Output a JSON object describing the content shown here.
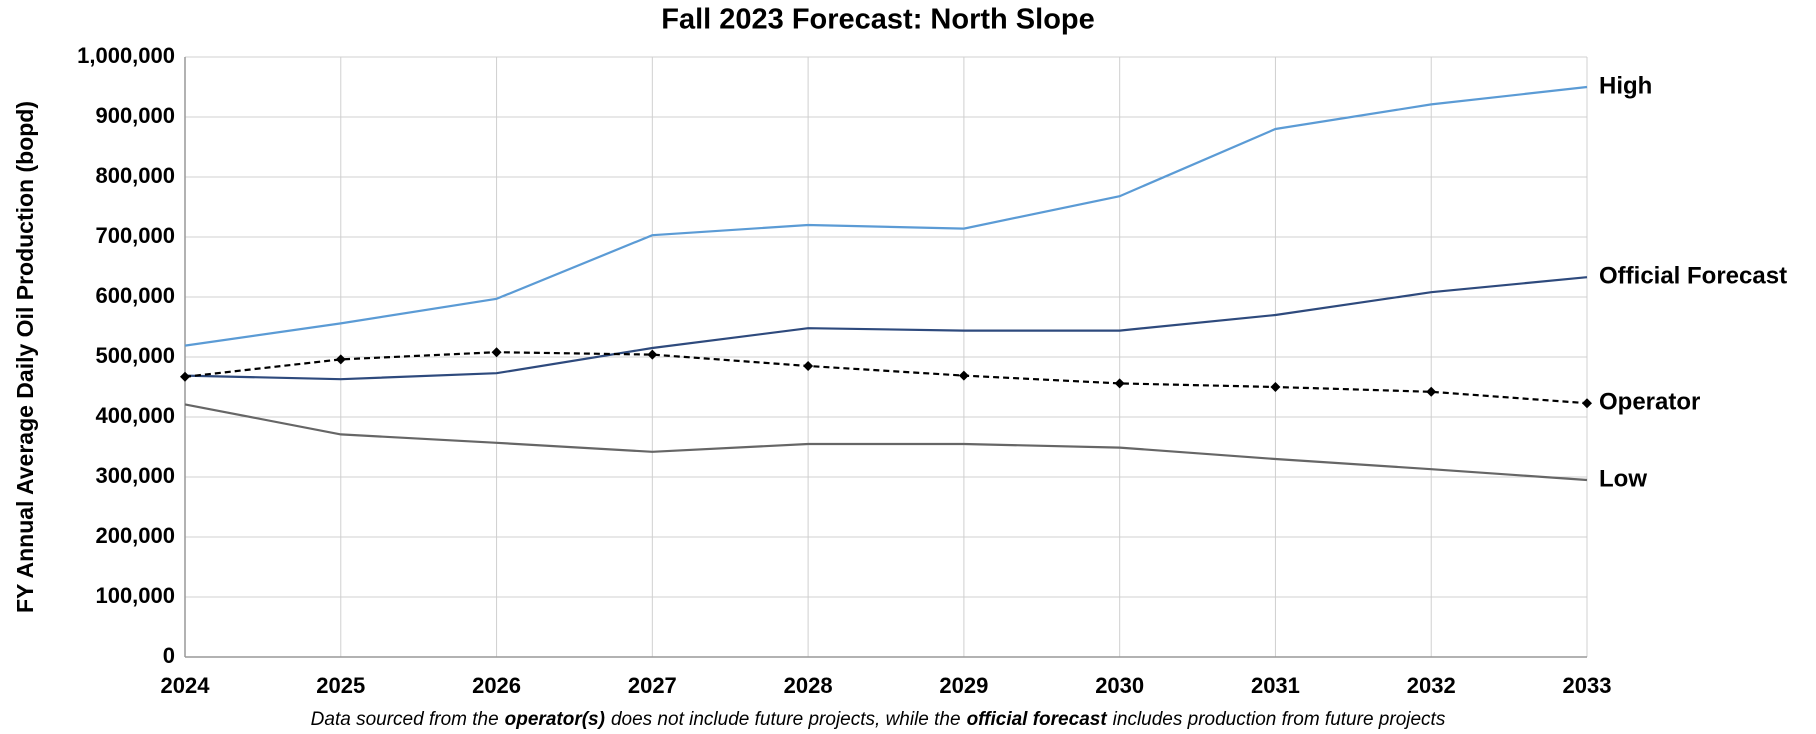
{
  "chart_data": {
    "type": "line",
    "title": "Fall 2023 Forecast: North Slope",
    "y_label": "FY Annual Average Daily Oil Production (bopd)",
    "footnote": [
      {
        "text": "Data sourced from the",
        "bold": false
      },
      {
        "text": "operator(s)",
        "bold": true
      },
      {
        "text": "does not include future projects, while the",
        "bold": false
      },
      {
        "text": "official forecast",
        "bold": true
      },
      {
        "text": "includes production from future projects",
        "bold": false
      }
    ],
    "x": [
      2024,
      2025,
      2026,
      2027,
      2028,
      2029,
      2030,
      2031,
      2032,
      2033
    ],
    "xlim": [
      2024,
      2033
    ],
    "xticks": [
      2024,
      2025,
      2026,
      2027,
      2028,
      2029,
      2030,
      2031,
      2032,
      2033
    ],
    "ylim": [
      0,
      1000000
    ],
    "yticks": [
      0,
      {
        "value": 100000,
        "label": "100,000"
      },
      {
        "value": 200000,
        "label": "200,000"
      },
      {
        "value": 300000,
        "label": "300,000"
      },
      {
        "value": 400000,
        "label": "400,000"
      },
      {
        "value": 500000,
        "label": "500,000"
      },
      {
        "value": 600000,
        "label": "600,000"
      },
      {
        "value": 700000,
        "label": "700,000"
      },
      {
        "value": 800000,
        "label": "800,000"
      },
      {
        "value": 900000,
        "label": "900,000"
      },
      {
        "value": 1000000,
        "label": "1,000,000"
      }
    ],
    "grid": true,
    "series": [
      {
        "name": "High",
        "color": "#5b9bd5",
        "dashed": false,
        "markers": false,
        "values": [
          519000,
          556000,
          597000,
          703000,
          720000,
          714000,
          768000,
          880000,
          921000,
          950000
        ]
      },
      {
        "name": "Official Forecast",
        "color": "#2e4a7d",
        "dashed": false,
        "markers": false,
        "values": [
          469000,
          463000,
          473000,
          515000,
          548000,
          544000,
          544000,
          570000,
          608000,
          633000
        ]
      },
      {
        "name": "Operator",
        "color": "#000000",
        "dashed": true,
        "markers": true,
        "values": [
          467000,
          496000,
          508000,
          504000,
          485000,
          469000,
          456000,
          450000,
          442000,
          423000
        ]
      },
      {
        "name": "Low",
        "color": "#666666",
        "dashed": false,
        "markers": false,
        "values": [
          421000,
          371000,
          357000,
          342000,
          355000,
          355000,
          349000,
          330000,
          313000,
          295000
        ]
      }
    ]
  }
}
